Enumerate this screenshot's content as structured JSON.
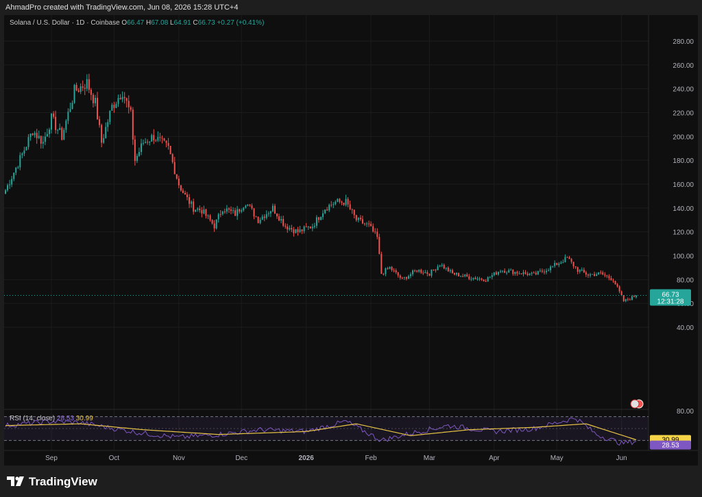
{
  "header": {
    "created_text": "AhmadPro created with TradingView.com, Jun 08, 2026 15:28 UTC+4"
  },
  "legend": {
    "symbol": "Solana / U.S. Dollar · 1D · Coinbase",
    "open_label": "O",
    "open": "66.47",
    "high_label": "H",
    "high": "67.08",
    "low_label": "L",
    "low": "64.91",
    "close_label": "C",
    "close": "66.73",
    "change": "+0.27 (+0.41%)"
  },
  "rsi_legend": {
    "label": "RSI (14, close)",
    "rsi_value": "28.53",
    "ma_value": "30.99"
  },
  "price_tag": {
    "price": "66.73",
    "countdown": "12:31:28"
  },
  "rsi_tags": {
    "ma": "30.99",
    "rsi": "28.53"
  },
  "brand": {
    "name": "TradingView",
    "icon": "tradingview-logo-icon"
  },
  "colors": {
    "up": "#26a69a",
    "down": "#ef5350",
    "rsi_line": "#7e57c2",
    "rsi_ma": "#e8c547",
    "background": "#0f0f0f"
  },
  "chart_data": [
    {
      "type": "candlestick",
      "title": "Solana / U.S. Dollar · 1D · Coinbase",
      "ylim": [
        30,
        290
      ],
      "y_ticks": [
        "280.00",
        "260.00",
        "240.00",
        "220.00",
        "200.00",
        "180.00",
        "160.00",
        "140.00",
        "120.00",
        "100.00",
        "80.00",
        "60.00",
        "40.00"
      ],
      "x_ticks": [
        "Sep",
        "Oct",
        "Nov",
        "Dec",
        "2026",
        "Feb",
        "Mar",
        "Apr",
        "May",
        "Jun"
      ],
      "x_tick_dates": [
        "2025-09-01",
        "2025-10-01",
        "2025-11-01",
        "2025-12-01",
        "2026-01-01",
        "2026-02-01",
        "2026-03-01",
        "2026-04-01",
        "2026-05-01",
        "2026-06-01"
      ],
      "date_range": [
        "2025-08-10",
        "2026-06-08"
      ],
      "grid": true,
      "last_price": 66.73,
      "path_dates": [
        "2025-08-10",
        "2025-08-18",
        "2025-08-23",
        "2025-08-28",
        "2025-09-01",
        "2025-09-06",
        "2025-09-12",
        "2025-09-18",
        "2025-09-22",
        "2025-09-25",
        "2025-09-30",
        "2025-10-05",
        "2025-10-09",
        "2025-10-11",
        "2025-10-15",
        "2025-10-20",
        "2025-10-27",
        "2025-11-01",
        "2025-11-04",
        "2025-11-08",
        "2025-11-12",
        "2025-11-18",
        "2025-11-22",
        "2025-11-28",
        "2025-12-03",
        "2025-12-09",
        "2025-12-16",
        "2025-12-22",
        "2025-12-28",
        "2026-01-04",
        "2026-01-10",
        "2026-01-15",
        "2026-01-20",
        "2026-01-25",
        "2026-01-31",
        "2026-02-04",
        "2026-02-06",
        "2026-02-10",
        "2026-02-16",
        "2026-02-23",
        "2026-03-01",
        "2026-03-06",
        "2026-03-12",
        "2026-03-20",
        "2026-03-28",
        "2026-04-04",
        "2026-04-12",
        "2026-04-20",
        "2026-04-28",
        "2026-05-06",
        "2026-05-11",
        "2026-05-16",
        "2026-05-22",
        "2026-05-28",
        "2026-06-02",
        "2026-06-05",
        "2026-06-08"
      ],
      "path_closes": [
        155,
        185,
        205,
        195,
        215,
        200,
        238,
        245,
        228,
        195,
        225,
        238,
        218,
        180,
        195,
        200,
        190,
        160,
        150,
        140,
        138,
        125,
        140,
        135,
        145,
        130,
        140,
        125,
        120,
        125,
        140,
        145,
        145,
        130,
        125,
        115,
        85,
        90,
        80,
        88,
        85,
        93,
        85,
        82,
        80,
        88,
        86,
        84,
        90,
        98,
        88,
        84,
        85,
        80,
        62,
        64,
        66.73
      ]
    },
    {
      "type": "line",
      "title": "RSI (14, close)",
      "ylim": [
        20,
        80
      ],
      "y_ticks": [
        "80.00"
      ],
      "bands": [
        30,
        70
      ],
      "series": [
        {
          "name": "RSI",
          "last": 28.53,
          "dates": [
            "2025-08-10",
            "2025-09-01",
            "2025-09-15",
            "2025-10-01",
            "2025-10-15",
            "2025-11-01",
            "2025-11-20",
            "2025-12-10",
            "2026-01-01",
            "2026-01-20",
            "2026-02-06",
            "2026-02-20",
            "2026-03-10",
            "2026-04-01",
            "2026-04-20",
            "2026-05-10",
            "2026-05-20",
            "2026-06-01",
            "2026-06-08"
          ],
          "values": [
            55,
            62,
            60,
            50,
            42,
            35,
            40,
            48,
            45,
            62,
            30,
            42,
            55,
            45,
            50,
            68,
            40,
            25,
            28.53
          ]
        },
        {
          "name": "RSI-based MA",
          "last": 30.99,
          "dates": [
            "2025-08-10",
            "2025-09-15",
            "2025-10-15",
            "2025-11-20",
            "2026-01-01",
            "2026-01-25",
            "2026-02-20",
            "2026-03-20",
            "2026-04-20",
            "2026-05-15",
            "2026-06-08"
          ],
          "values": [
            55,
            58,
            48,
            40,
            45,
            58,
            38,
            48,
            52,
            58,
            30.99
          ]
        }
      ]
    }
  ]
}
